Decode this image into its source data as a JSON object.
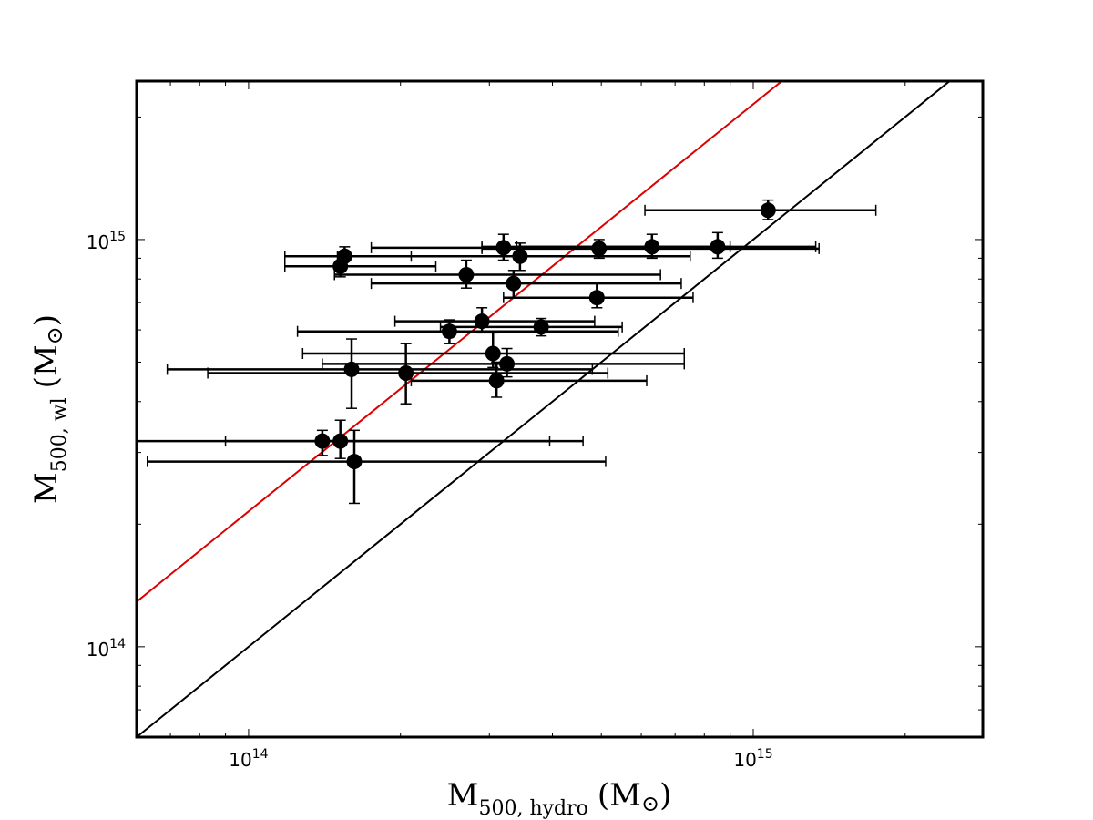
{
  "chart_data": {
    "type": "scatter",
    "x_scale": "log",
    "y_scale": "log",
    "xlim": [
      60000000000000.0,
      2850000000000000.0
    ],
    "ylim": [
      60000000000000.0,
      2450000000000000.0
    ],
    "xlabel": {
      "main": "M",
      "sub": "500, hydro",
      "unit_open": "(M",
      "unit_sym": "⊙",
      "unit_close": ")"
    },
    "ylabel": {
      "main": "M",
      "sub": "500, wl",
      "unit_open": "(M",
      "unit_sym": "⊙",
      "unit_close": ")"
    },
    "x_ticks": [
      {
        "value": 100000000000000.0,
        "base": "10",
        "exp": "14"
      },
      {
        "value": 1000000000000000.0,
        "base": "10",
        "exp": "15"
      }
    ],
    "y_ticks": [
      {
        "value": 100000000000000.0,
        "base": "10",
        "exp": "14"
      },
      {
        "value": 1000000000000000.0,
        "base": "10",
        "exp": "15"
      }
    ],
    "lines": [
      {
        "name": "one-to-one",
        "color": "#000000",
        "slope": 1.0,
        "intercept_factor": 1.0
      },
      {
        "name": "best-fit",
        "color": "#dd0000",
        "slope": 1.0,
        "intercept_factor": 2.15
      }
    ],
    "points": [
      {
        "x": 1070000000000000.0,
        "y": 1180000000000000.0,
        "xerr": [
          610000000000000.0,
          1750000000000000.0
        ],
        "yerr": [
          1120000000000000.0,
          1250000000000000.0
        ]
      },
      {
        "x": 850000000000000.0,
        "y": 960000000000000.0,
        "xerr": [
          340000000000000.0,
          1330000000000000.0
        ],
        "yerr": [
          900000000000000.0,
          1040000000000000.0
        ]
      },
      {
        "x": 630000000000000.0,
        "y": 960000000000000.0,
        "xerr": [
          290000000000000.0,
          900000000000000.0
        ],
        "yerr": [
          900000000000000.0,
          1030000000000000.0
        ]
      },
      {
        "x": 495000000000000.0,
        "y": 950000000000000.0,
        "xerr": [
          290000000000000.0,
          1350000000000000.0
        ],
        "yerr": [
          900000000000000.0,
          1000000000000000.0
        ]
      },
      {
        "x": 320000000000000.0,
        "y": 955000000000000.0,
        "xerr": [
          175000000000000.0,
          850000000000000.0
        ],
        "yerr": [
          890000000000000.0,
          1030000000000000.0
        ]
      },
      {
        "x": 345000000000000.0,
        "y": 910000000000000.0,
        "xerr": [
          150000000000000.0,
          750000000000000.0
        ],
        "yerr": [
          840000000000000.0,
          980000000000000.0
        ]
      },
      {
        "x": 155000000000000.0,
        "y": 910000000000000.0,
        "xerr": [
          118000000000000.0,
          210000000000000.0
        ],
        "yerr": [
          860000000000000.0,
          960000000000000.0
        ]
      },
      {
        "x": 152000000000000.0,
        "y": 860000000000000.0,
        "xerr": [
          118000000000000.0,
          235000000000000.0
        ],
        "yerr": [
          810000000000000.0,
          910000000000000.0
        ]
      },
      {
        "x": 270000000000000.0,
        "y": 820000000000000.0,
        "xerr": [
          148000000000000.0,
          655000000000000.0
        ],
        "yerr": [
          760000000000000.0,
          890000000000000.0
        ]
      },
      {
        "x": 335000000000000.0,
        "y": 780000000000000.0,
        "xerr": [
          175000000000000.0,
          720000000000000.0
        ],
        "yerr": [
          720000000000000.0,
          840000000000000.0
        ]
      },
      {
        "x": 490000000000000.0,
        "y": 720000000000000.0,
        "xerr": [
          320000000000000.0,
          760000000000000.0
        ],
        "yerr": [
          680000000000000.0,
          780000000000000.0
        ]
      },
      {
        "x": 290000000000000.0,
        "y": 630000000000000.0,
        "xerr": [
          195000000000000.0,
          485000000000000.0
        ],
        "yerr": [
          590000000000000.0,
          680000000000000.0
        ]
      },
      {
        "x": 380000000000000.0,
        "y": 610000000000000.0,
        "xerr": [
          240000000000000.0,
          550000000000000.0
        ],
        "yerr": [
          580000000000000.0,
          640000000000000.0
        ]
      },
      {
        "x": 250000000000000.0,
        "y": 595000000000000.0,
        "xerr": [
          125000000000000.0,
          540000000000000.0
        ],
        "yerr": [
          555000000000000.0,
          635000000000000.0
        ]
      },
      {
        "x": 305000000000000.0,
        "y": 525000000000000.0,
        "xerr": [
          128000000000000.0,
          730000000000000.0
        ],
        "yerr": [
          485000000000000.0,
          590000000000000.0
        ]
      },
      {
        "x": 325000000000000.0,
        "y": 495000000000000.0,
        "xerr": [
          140000000000000.0,
          730000000000000.0
        ],
        "yerr": [
          460000000000000.0,
          540000000000000.0
        ]
      },
      {
        "x": 160000000000000.0,
        "y": 480000000000000.0,
        "xerr": [
          69000000000000.0,
          480000000000000.0
        ],
        "yerr": [
          385000000000000.0,
          570000000000000.0
        ]
      },
      {
        "x": 205000000000000.0,
        "y": 470000000000000.0,
        "xerr": [
          83000000000000.0,
          515000000000000.0
        ],
        "yerr": [
          395000000000000.0,
          555000000000000.0
        ]
      },
      {
        "x": 310000000000000.0,
        "y": 450000000000000.0,
        "xerr": [
          210000000000000.0,
          615000000000000.0
        ],
        "yerr": [
          410000000000000.0,
          500000000000000.0
        ]
      },
      {
        "x": 140000000000000.0,
        "y": 320000000000000.0,
        "xerr": [
          60000000000000.0,
          395000000000000.0
        ],
        "yerr": [
          295000000000000.0,
          340000000000000.0
        ]
      },
      {
        "x": 152000000000000.0,
        "y": 320000000000000.0,
        "xerr": [
          90000000000000.0,
          460000000000000.0
        ],
        "yerr": [
          290000000000000.0,
          360000000000000.0
        ]
      },
      {
        "x": 162000000000000.0,
        "y": 285000000000000.0,
        "xerr": [
          63000000000000.0,
          510000000000000.0
        ],
        "yerr": [
          225000000000000.0,
          340000000000000.0
        ]
      }
    ]
  }
}
